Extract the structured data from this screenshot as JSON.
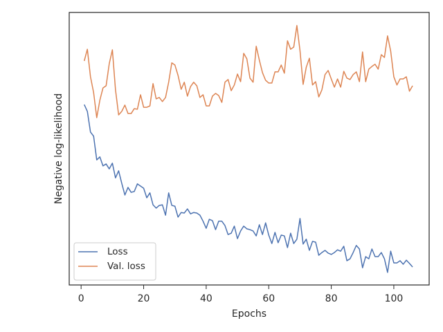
{
  "chart_data": {
    "type": "line",
    "xlabel": "Epochs",
    "ylabel": "Negative log-likelihood",
    "x": [
      1,
      2,
      3,
      4,
      5,
      6,
      7,
      8,
      9,
      10,
      11,
      12,
      13,
      14,
      15,
      16,
      17,
      18,
      19,
      20,
      21,
      22,
      23,
      24,
      25,
      26,
      27,
      28,
      29,
      30,
      31,
      32,
      33,
      34,
      35,
      36,
      37,
      38,
      39,
      40,
      41,
      42,
      43,
      44,
      45,
      46,
      47,
      48,
      49,
      50,
      51,
      52,
      53,
      54,
      55,
      56,
      57,
      58,
      59,
      60,
      61,
      62,
      63,
      64,
      65,
      66,
      67,
      68,
      69,
      70,
      71,
      72,
      73,
      74,
      75,
      76,
      77,
      78,
      79,
      80,
      81,
      82,
      83,
      84,
      85,
      86,
      87,
      88,
      89,
      90,
      91,
      92,
      93,
      94,
      95,
      96,
      97,
      98,
      99,
      100,
      101,
      102,
      103,
      104,
      105,
      106
    ],
    "series": [
      {
        "name": "Loss",
        "color": "#4c72b0",
        "values": [
          66.2,
          63.7,
          56.1,
          54.6,
          45.9,
          47.0,
          43.7,
          44.4,
          42.6,
          44.7,
          39.3,
          41.9,
          37.3,
          33.0,
          35.8,
          34.0,
          34.3,
          37.1,
          36.3,
          35.5,
          32.0,
          33.8,
          29.4,
          28.2,
          29.2,
          29.4,
          25.6,
          33.8,
          29.2,
          28.9,
          24.9,
          26.6,
          26.4,
          27.9,
          26.1,
          26.6,
          26.4,
          25.6,
          23.4,
          20.8,
          24.1,
          23.6,
          20.3,
          23.4,
          23.4,
          21.8,
          18.5,
          19.0,
          21.6,
          17.0,
          19.8,
          21.6,
          20.6,
          20.3,
          19.8,
          18.0,
          22.1,
          18.5,
          22.8,
          18.3,
          15.2,
          19.3,
          15.5,
          18.3,
          18.0,
          13.7,
          19.0,
          15.2,
          16.8,
          24.4,
          15.0,
          16.8,
          12.7,
          16.0,
          15.7,
          10.9,
          11.9,
          12.7,
          11.7,
          11.2,
          11.9,
          12.9,
          12.4,
          14.2,
          8.9,
          9.6,
          11.9,
          14.5,
          13.2,
          6.3,
          10.4,
          9.6,
          13.2,
          10.4,
          10.4,
          11.9,
          9.6,
          4.6,
          12.4,
          8.1,
          8.1,
          8.9,
          7.6,
          9.1,
          7.9,
          6.6
        ]
      },
      {
        "name": "Val. loss",
        "color": "#dd8452",
        "values": [
          82.2,
          86.5,
          76.4,
          70.6,
          61.4,
          67.8,
          72.3,
          73.1,
          81.2,
          86.3,
          71.6,
          62.4,
          63.7,
          66.0,
          62.9,
          62.9,
          64.7,
          64.5,
          69.8,
          65.2,
          65.2,
          65.7,
          73.9,
          68.3,
          68.8,
          67.3,
          68.8,
          74.4,
          81.5,
          80.7,
          76.9,
          71.8,
          74.4,
          69.3,
          72.8,
          74.4,
          73.1,
          68.8,
          69.8,
          65.7,
          65.7,
          69.3,
          70.3,
          69.5,
          67.0,
          74.4,
          75.4,
          71.3,
          73.4,
          77.4,
          74.6,
          85.0,
          83.0,
          75.9,
          74.4,
          87.6,
          82.5,
          77.9,
          75.1,
          74.1,
          74.1,
          78.2,
          78.2,
          80.7,
          77.7,
          89.6,
          86.5,
          87.3,
          95.2,
          86.0,
          73.6,
          79.9,
          83.2,
          73.4,
          74.6,
          69.0,
          71.6,
          77.2,
          78.7,
          75.6,
          72.6,
          75.6,
          72.6,
          78.4,
          75.9,
          75.4,
          77.2,
          78.2,
          74.6,
          85.5,
          74.6,
          79.2,
          80.2,
          81.0,
          79.2,
          84.5,
          83.5,
          91.4,
          85.8,
          76.4,
          73.4,
          75.6,
          75.6,
          76.4,
          71.1,
          73.1
        ]
      }
    ],
    "xlim": [
      -3.8,
      111.3
    ],
    "ylim": [
      0,
      100
    ],
    "xticks": [
      0,
      20,
      40,
      60,
      80,
      100
    ],
    "legend": "lower left"
  }
}
